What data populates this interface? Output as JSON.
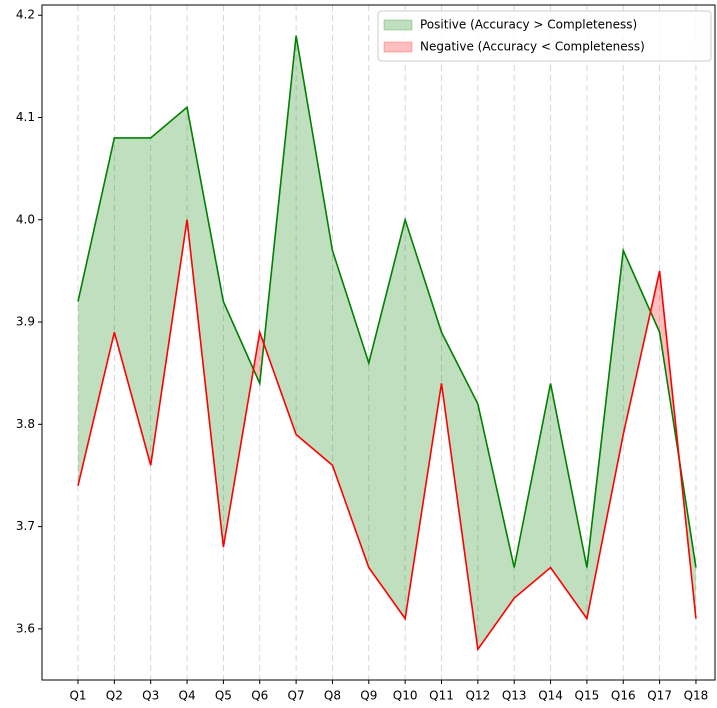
{
  "chart_data": {
    "type": "line",
    "categories": [
      "Q1",
      "Q2",
      "Q3",
      "Q4",
      "Q5",
      "Q6",
      "Q7",
      "Q8",
      "Q9",
      "Q10",
      "Q11",
      "Q12",
      "Q13",
      "Q14",
      "Q15",
      "Q16",
      "Q17",
      "Q18"
    ],
    "series": [
      {
        "color": "green",
        "values": [
          3.92,
          4.08,
          4.08,
          4.11,
          3.92,
          3.84,
          4.18,
          3.97,
          3.86,
          4.0,
          3.89,
          3.82,
          3.66,
          3.84,
          3.66,
          3.97,
          3.89,
          3.66
        ]
      },
      {
        "color": "red",
        "values": [
          3.74,
          3.89,
          3.76,
          4.0,
          3.68,
          3.89,
          3.79,
          3.76,
          3.66,
          3.61,
          3.84,
          3.58,
          3.63,
          3.66,
          3.61,
          3.79,
          3.95,
          3.61
        ]
      }
    ],
    "fills": [
      {
        "name": "Positive (Accuracy > Completeness)",
        "color": "green",
        "alpha": 0.25
      },
      {
        "name": "Negative (Accuracy < Completeness)",
        "color": "red",
        "alpha": 0.25
      }
    ],
    "ylim": [
      3.55,
      4.21
    ],
    "yticks": [
      3.6,
      3.7,
      3.8,
      3.9,
      {
        "value": 4,
        "label": "4.0"
      },
      4.1,
      4.2
    ],
    "grid": "x",
    "legend": "upper right"
  }
}
